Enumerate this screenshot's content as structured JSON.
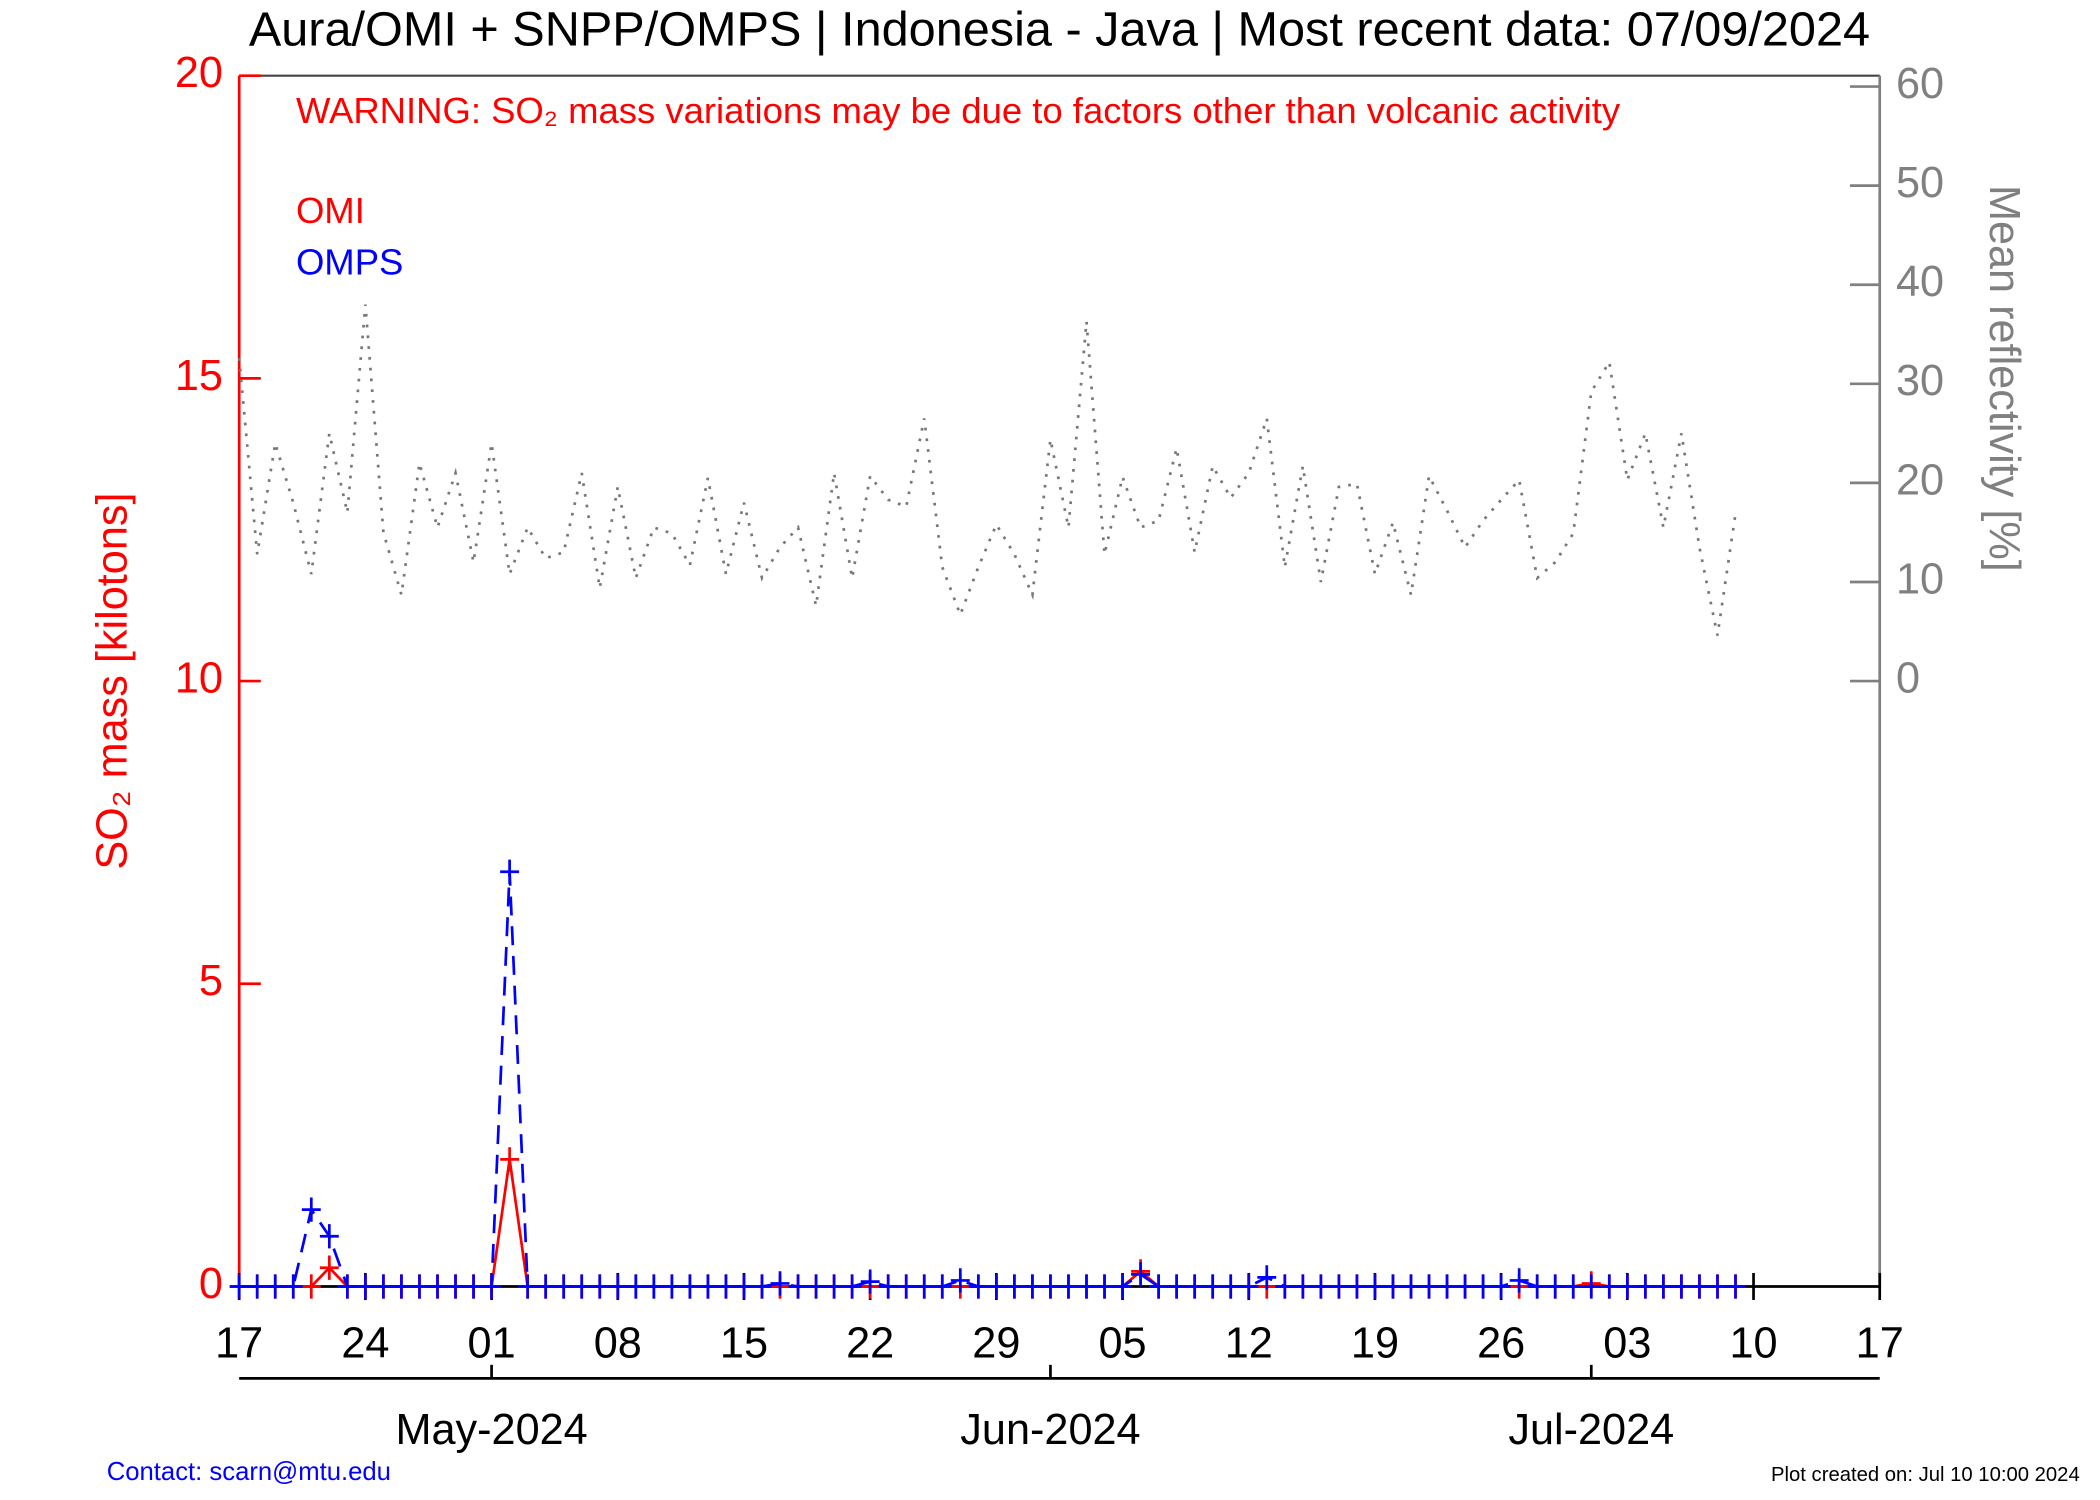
{
  "chart_data": {
    "type": "line",
    "title": "Aura/OMI + SNPP/OMPS | Indonesia - Java | Most recent data: 07/09/2024",
    "annotation": "WARNING: SO₂ mass variations may be due to factors other than volcanic activity",
    "ylabel": "SO₂ mass [kilotons]",
    "y2label": "Mean reflectivity [%]",
    "footer_left": "Contact: scarn@mtu.edu",
    "footer_right": "Plot created on: Jul 10 10:00 2024",
    "x": [
      "2024-04-17",
      "2024-04-18",
      "2024-04-19",
      "2024-04-20",
      "2024-04-21",
      "2024-04-22",
      "2024-04-23",
      "2024-04-24",
      "2024-04-25",
      "2024-04-26",
      "2024-04-27",
      "2024-04-28",
      "2024-04-29",
      "2024-04-30",
      "2024-05-01",
      "2024-05-02",
      "2024-05-03",
      "2024-05-04",
      "2024-05-05",
      "2024-05-06",
      "2024-05-07",
      "2024-05-08",
      "2024-05-09",
      "2024-05-10",
      "2024-05-11",
      "2024-05-12",
      "2024-05-13",
      "2024-05-14",
      "2024-05-15",
      "2024-05-16",
      "2024-05-17",
      "2024-05-18",
      "2024-05-19",
      "2024-05-20",
      "2024-05-21",
      "2024-05-22",
      "2024-05-23",
      "2024-05-24",
      "2024-05-25",
      "2024-05-26",
      "2024-05-27",
      "2024-05-28",
      "2024-05-29",
      "2024-05-30",
      "2024-05-31",
      "2024-06-01",
      "2024-06-02",
      "2024-06-03",
      "2024-06-04",
      "2024-06-05",
      "2024-06-06",
      "2024-06-07",
      "2024-06-08",
      "2024-06-09",
      "2024-06-10",
      "2024-06-11",
      "2024-06-12",
      "2024-06-13",
      "2024-06-14",
      "2024-06-15",
      "2024-06-16",
      "2024-06-17",
      "2024-06-18",
      "2024-06-19",
      "2024-06-20",
      "2024-06-21",
      "2024-06-22",
      "2024-06-23",
      "2024-06-24",
      "2024-06-25",
      "2024-06-26",
      "2024-06-27",
      "2024-06-28",
      "2024-06-29",
      "2024-06-30",
      "2024-07-01",
      "2024-07-02",
      "2024-07-03",
      "2024-07-04",
      "2024-07-05",
      "2024-07-06",
      "2024-07-07",
      "2024-07-08",
      "2024-07-09"
    ],
    "series": [
      {
        "name": "OMI",
        "color": "#ff0000",
        "linestyle": "solid",
        "axis": "y",
        "values": [
          0,
          0,
          0,
          0,
          0,
          0.31,
          0,
          0,
          0,
          0,
          0,
          0,
          0,
          0,
          0,
          2.1,
          0,
          0,
          0,
          0,
          0,
          0,
          0,
          0,
          0,
          0,
          0,
          0,
          0,
          0,
          0,
          0,
          0,
          0,
          0,
          0,
          0,
          0,
          0,
          0,
          0,
          0,
          0,
          0,
          0,
          0,
          0,
          0,
          0,
          0,
          0.25,
          0,
          0,
          0,
          0,
          0,
          0,
          0,
          0,
          0,
          0,
          0,
          0,
          0,
          0,
          0,
          0,
          0,
          0,
          0,
          0,
          0,
          0,
          0,
          0,
          0.05,
          0,
          0,
          0,
          0,
          0,
          0,
          0,
          0
        ]
      },
      {
        "name": "OMPS",
        "color": "#0000ff",
        "linestyle": "dashed",
        "axis": "y",
        "values": [
          0,
          0,
          0,
          0,
          1.27,
          0.83,
          0,
          0,
          0,
          0,
          0,
          0,
          0,
          0,
          0,
          6.85,
          0,
          0,
          0,
          0,
          0,
          0,
          0,
          0,
          0,
          0,
          0,
          0,
          0,
          0,
          0.05,
          0,
          0,
          0,
          0,
          0.08,
          0,
          0,
          0,
          0,
          0.1,
          0,
          0,
          0,
          0,
          0,
          0,
          0,
          0,
          0,
          0.2,
          0,
          0,
          0,
          0,
          0,
          0,
          0.15,
          0,
          0,
          0,
          0,
          0,
          0,
          0,
          0,
          0,
          0,
          0,
          0,
          0,
          0.1,
          0,
          0,
          0,
          0,
          0,
          0,
          0,
          0,
          0,
          0,
          0,
          0
        ]
      },
      {
        "color": "#777777",
        "linestyle": "dotted",
        "axis": "y2",
        "values": [
          32.6,
          12.8,
          24,
          18,
          10.8,
          25,
          17,
          38,
          15,
          8.7,
          22,
          15.5,
          21,
          12,
          24,
          10.8,
          15.5,
          12.4,
          13,
          21,
          9.4,
          19.6,
          10.4,
          15.5,
          14.9,
          11.7,
          20.5,
          10.8,
          18,
          10.4,
          13.5,
          15.5,
          7.6,
          21,
          10.4,
          20.7,
          18.3,
          17.6,
          26.5,
          11.5,
          6.7,
          11.5,
          15.8,
          12.8,
          8.7,
          24.4,
          15.5,
          36.3,
          12.8,
          20.6,
          15.5,
          16.2,
          23.5,
          13,
          21.7,
          18.5,
          21,
          26.5,
          11.5,
          21.7,
          10,
          19.6,
          19.9,
          10.8,
          16,
          8.7,
          20.7,
          17.2,
          13.5,
          16.2,
          18.3,
          20.3,
          10.4,
          12,
          14.9,
          29.2,
          32.2,
          20.3,
          25,
          15.5,
          25,
          13.5,
          4.6,
          16.9
        ]
      }
    ],
    "xlim": [
      "2024-04-17",
      "2024-07-17"
    ],
    "xticks": [
      {
        "value": "2024-04-17",
        "label": "17"
      },
      {
        "value": "2024-04-24",
        "label": "24"
      },
      {
        "value": "2024-05-01",
        "label": "01"
      },
      {
        "value": "2024-05-08",
        "label": "08"
      },
      {
        "value": "2024-05-15",
        "label": "15"
      },
      {
        "value": "2024-05-22",
        "label": "22"
      },
      {
        "value": "2024-05-29",
        "label": "29"
      },
      {
        "value": "2024-06-05",
        "label": "05"
      },
      {
        "value": "2024-06-12",
        "label": "12"
      },
      {
        "value": "2024-06-19",
        "label": "19"
      },
      {
        "value": "2024-06-26",
        "label": "26"
      },
      {
        "value": "2024-07-03",
        "label": "03"
      },
      {
        "value": "2024-07-10",
        "label": "10"
      },
      {
        "value": "2024-07-17",
        "label": "17"
      }
    ],
    "month_ticks": [
      {
        "value": "2024-05-01",
        "label": "May-2024"
      },
      {
        "value": "2024-06-01",
        "label": "Jun-2024"
      },
      {
        "value": "2024-07-01",
        "label": "Jul-2024"
      }
    ],
    "ylim": [
      0,
      20
    ],
    "yticks": [
      0,
      5,
      10,
      15,
      20
    ],
    "y2lim": [
      -61.1,
      61.1
    ],
    "y2ticks": [
      0,
      10,
      20,
      30,
      40,
      50,
      60
    ],
    "ycolor": "#ff0000",
    "y2color": "#808080"
  }
}
